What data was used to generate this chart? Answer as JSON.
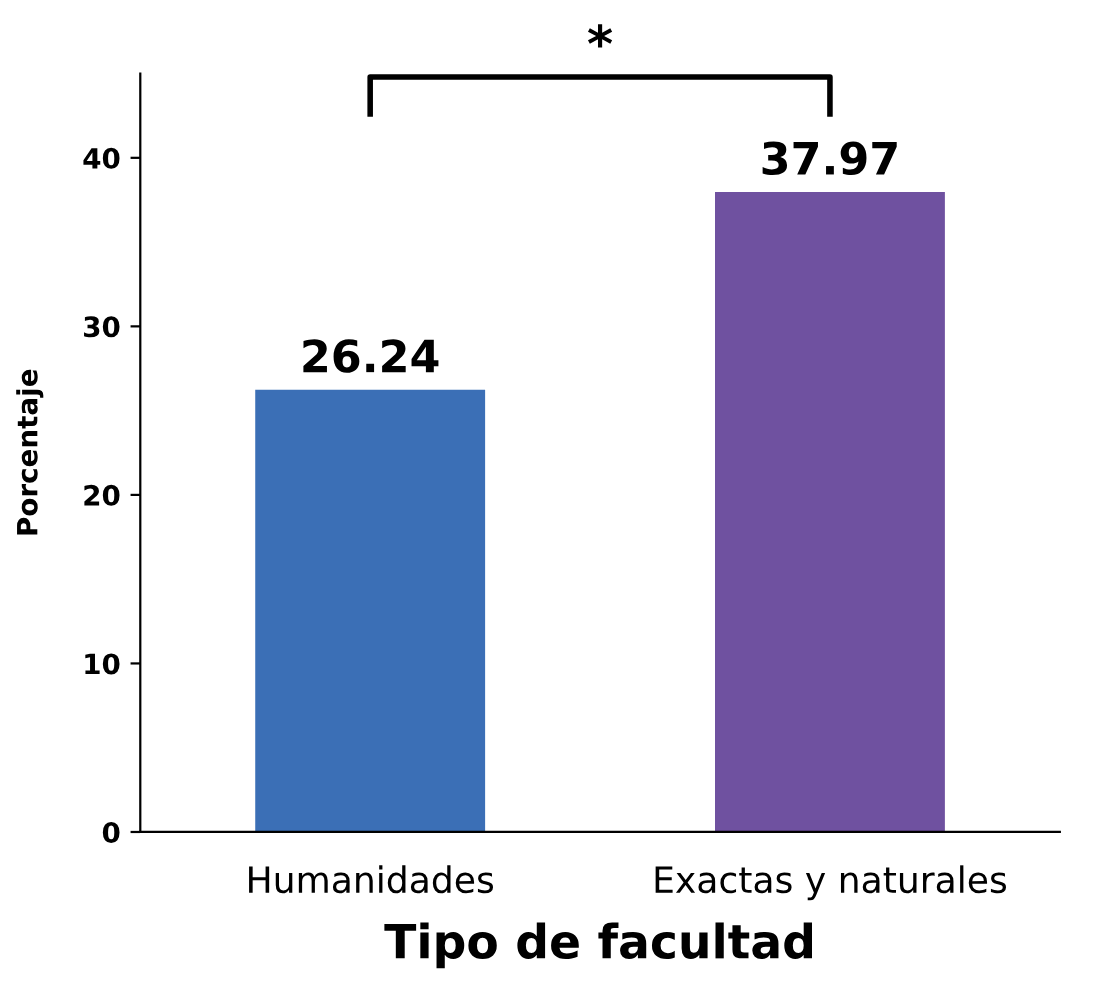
{
  "chart_data": {
    "type": "bar",
    "categories": [
      "Humanidades",
      "Exactas y naturales"
    ],
    "values": [
      26.24,
      37.97
    ],
    "colors": [
      "#3b6fb6",
      "#6f51a0"
    ],
    "data_labels": true,
    "xlabel": "Tipo de facultad",
    "ylabel": "Porcentaje",
    "ylim": [
      0,
      45
    ],
    "yticks": [
      0,
      10,
      20,
      30,
      40
    ],
    "annotations": [
      "*"
    ],
    "grid": false,
    "legend": false
  }
}
